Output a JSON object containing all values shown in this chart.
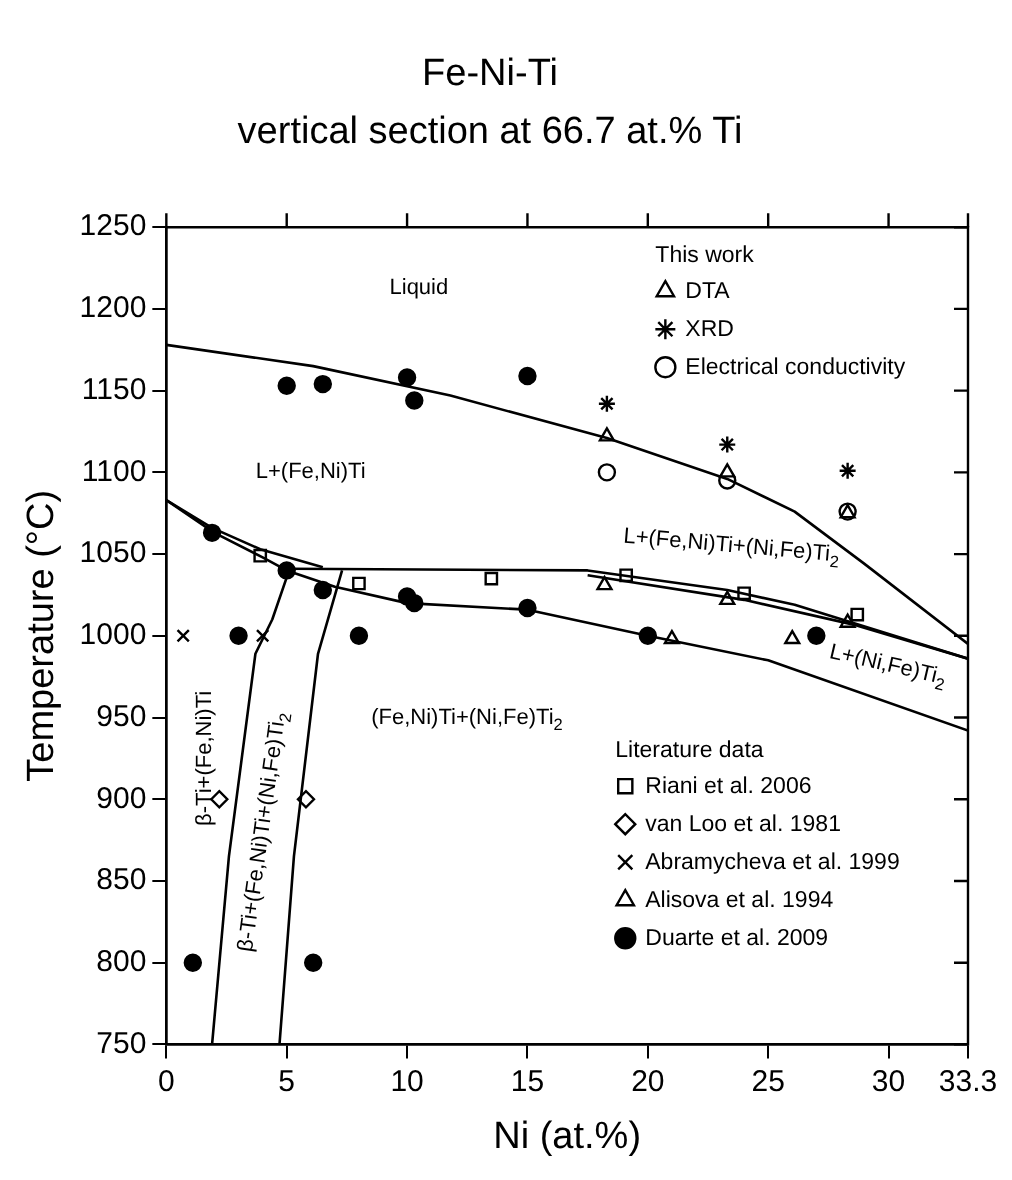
{
  "chart_data": {
    "type": "scatter",
    "title": "Fe-Ni-Ti",
    "subtitle": "vertical section at 66.7 at.% Ti",
    "xlabel": "Ni (at.%)",
    "ylabel": "Temperature (°C)",
    "xlim": [
      0,
      33.3
    ],
    "xticks": [
      0,
      5,
      10,
      15,
      20,
      25,
      30,
      33.3
    ],
    "ylim": [
      750,
      1250
    ],
    "yticks": [
      750,
      800,
      850,
      900,
      950,
      1000,
      1050,
      1100,
      1150,
      1200,
      1250
    ],
    "grid": false,
    "legend": "right",
    "annotations": [
      "This work",
      "Literature data",
      "Liquid",
      "L+(Fe,Ni)Ti",
      "L+(Fe,Ni)Ti+(Ni,Fe)Ti$_{2}$",
      "L+(Ni,Fe)Ti$_{2}$",
      "(Fe,Ni)Ti+(Ni,Fe)Ti$_{2}$",
      "β-Ti+(Fe,Ni)Ti",
      "β-Ti+(Fe,Ni)Ti+(Ni,Fe)Ti$_{2}$"
    ],
    "series": [
      {
        "type": "line",
        "color": "#000000",
        "marker": "none",
        "x": [
          0,
          6.1,
          11.8,
          18.3,
          23.3,
          26.1,
          29,
          33.3
        ],
        "values": [
          1178,
          1165,
          1147,
          1121,
          1096,
          1076,
          1044,
          995
        ]
      },
      {
        "type": "line",
        "color": "#000000",
        "marker": "none",
        "x": [
          0,
          1.9,
          3.9,
          6.5
        ],
        "values": [
          1083,
          1066,
          1053,
          1042
        ]
      },
      {
        "type": "line",
        "color": "#000000",
        "marker": "none",
        "x": [
          0,
          2,
          4,
          5,
          7,
          10,
          15,
          20,
          25,
          33.3
        ],
        "values": [
          1083,
          1063,
          1048,
          1040,
          1030,
          1020,
          1016,
          1000,
          985,
          942
        ]
      },
      {
        "type": "line",
        "color": "#000000",
        "marker": "none",
        "x": [
          5.1,
          17.5,
          23.3,
          26.1,
          33.3
        ],
        "values": [
          1041,
          1040,
          1028,
          1019,
          986
        ]
      },
      {
        "type": "line",
        "color": "#000000",
        "marker": "none",
        "x": [
          17.5,
          24,
          28.5,
          33.3
        ],
        "values": [
          1037,
          1022,
          1007,
          986
        ]
      },
      {
        "type": "line",
        "color": "#000000",
        "marker": "none",
        "x": [
          5.1,
          4.4,
          3.7,
          2.6,
          1.9
        ],
        "values": [
          1040,
          1010,
          989,
          865,
          750
        ]
      },
      {
        "type": "line",
        "color": "#000000",
        "marker": "none",
        "x": [
          7.3,
          6.3,
          5.3,
          4.7
        ],
        "values": [
          1040,
          989,
          865,
          750
        ]
      },
      {
        "name": "DTA",
        "color": "#000000",
        "marker": "triangle",
        "x": [
          18.3,
          23.3,
          28.3,
          18.2,
          23.3,
          28.3
        ],
        "values": [
          1122,
          1100,
          1075,
          1031,
          1022,
          1008
        ]
      },
      {
        "name": "XRD",
        "color": "#000000",
        "marker": "cross",
        "x": [
          18.3,
          23.3,
          28.3
        ],
        "values": [
          1142,
          1117,
          1101
        ]
      },
      {
        "name": "Electrical conductivity",
        "color": "#000000",
        "marker": "circle",
        "x": [
          18.3,
          23.3,
          28.3
        ],
        "values": [
          1100,
          1095,
          1076
        ]
      },
      {
        "name": "Riani et al. 2006",
        "color": "#000000",
        "marker": "square",
        "x": [
          3.9,
          8,
          13.5,
          19.1,
          24,
          28.7
        ],
        "values": [
          1049,
          1032,
          1035,
          1037,
          1026,
          1013
        ]
      },
      {
        "name": "van Loo et al. 1981",
        "color": "#000000",
        "marker": "diamond",
        "x": [
          2.2,
          5.8
        ],
        "values": [
          900,
          900
        ]
      },
      {
        "name": "Abramycheva et al. 1999",
        "color": "#000000",
        "x": [
          0.7,
          4
        ],
        "values": [
          1000,
          1000
        ]
      },
      {
        "name": "Alisova et al. 1994",
        "color": "#000000",
        "marker": "triangle",
        "x": [
          21,
          26
        ],
        "values": [
          998,
          998
        ]
      },
      {
        "name": "Duarte et al. 2009",
        "color": "#000000",
        "marker": "circle",
        "x": [
          5,
          6.5,
          10,
          10.3,
          15,
          1.9,
          5,
          6.5,
          10,
          10.3,
          15,
          3,
          8,
          20,
          27,
          1.1,
          6.1
        ],
        "values": [
          1153,
          1154,
          1158,
          1144,
          1159,
          1063,
          1040,
          1028,
          1024,
          1020,
          1017,
          1000,
          1000,
          1000,
          1000,
          800,
          800
        ]
      }
    ]
  }
}
